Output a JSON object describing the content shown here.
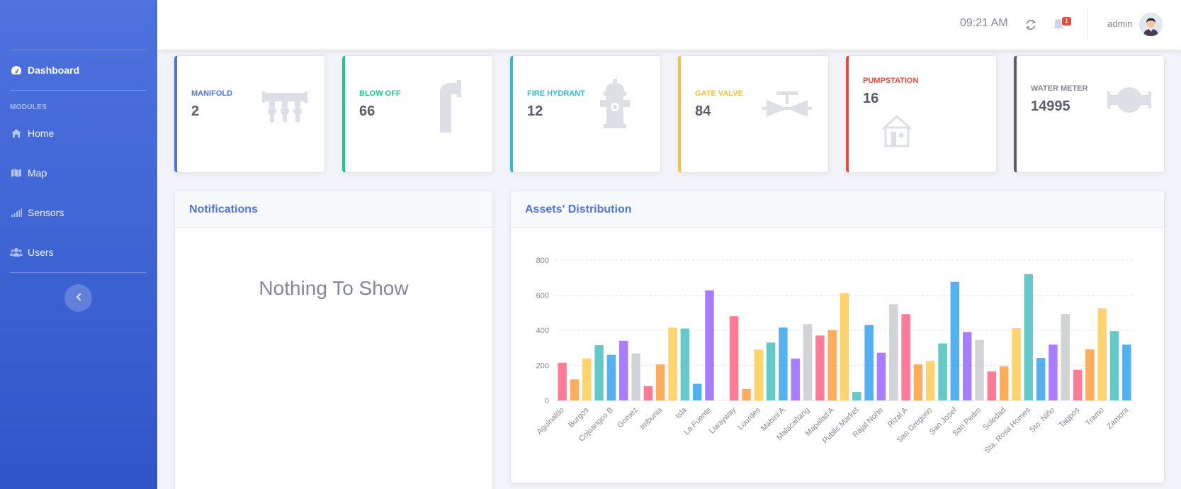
{
  "sidebar": {
    "active_item": "Dashboard",
    "heading": "MODULES",
    "items": [
      {
        "label": "Home",
        "icon": "home-icon"
      },
      {
        "label": "Map",
        "icon": "map-icon"
      },
      {
        "label": "Sensors",
        "icon": "signal-icon"
      },
      {
        "label": "Users",
        "icon": "users-icon"
      }
    ],
    "toggle_icon": "chevron-left-icon"
  },
  "topbar": {
    "time": "09:21 AM",
    "refresh_icon": "refresh-icon",
    "bell_icon": "bell-icon",
    "notification_count": "1",
    "user_name": "admin"
  },
  "cards": [
    {
      "label": "MANIFOLD",
      "value": "2",
      "color": "#4e73df",
      "icon": "manifold-icon"
    },
    {
      "label": "BLOW OFF",
      "value": "66",
      "color": "#1cc88a",
      "icon": "blow-off-pipe-icon"
    },
    {
      "label": "FIRE HYDRANT",
      "value": "12",
      "color": "#36b9cc",
      "icon": "fire-hydrant-icon"
    },
    {
      "label": "GATE VALVE",
      "value": "84",
      "color": "#f6c23e",
      "icon": "gate-valve-icon"
    },
    {
      "label": "PUMPSTATION",
      "value": "16",
      "color": "#e74a3b",
      "icon": "pump-station-icon"
    },
    {
      "label": "WATER METER",
      "value": "14995",
      "color": "#5a5c69",
      "icon": "water-meter-icon"
    }
  ],
  "notifications": {
    "title": "Notifications",
    "empty_text": "Nothing To Show"
  },
  "assets": {
    "title": "Assets' Distribution"
  },
  "chart_data": {
    "type": "bar",
    "title": "",
    "xlabel": "",
    "ylabel": "",
    "ylim": [
      0,
      800
    ],
    "yticks": [
      0,
      200,
      400,
      600,
      800
    ],
    "grid": true,
    "legend": "none",
    "palette": [
      "#ff6384",
      "#ff9f40",
      "#ffcd56",
      "#4bc0c0",
      "#36a2eb",
      "#9966ff",
      "#c9cbcf"
    ],
    "categories": [
      "Aguinaldo",
      "",
      "Burgos",
      "",
      "Cojuangco B",
      "",
      "Gomez",
      "",
      "Imbunia",
      "",
      "Isla",
      "",
      "La Fuente",
      "",
      "Liwayway",
      "",
      "Lourdes",
      "",
      "Mabini A",
      "",
      "Malacañang",
      "",
      "Mapalad A",
      "",
      "Public Market",
      "",
      "Rajal Norte",
      "",
      "Rizal A",
      "",
      "San Gregorio",
      "",
      "San Josef",
      "",
      "San Pedro",
      "",
      "Soledad",
      "",
      "Sta. Rosa Homes",
      "",
      "Sto. Niño",
      "",
      "Tagpos",
      "",
      "Tramo",
      "",
      "Zamora"
    ],
    "values": [
      215,
      120,
      238,
      315,
      260,
      340,
      268,
      82,
      205,
      415,
      410,
      95,
      628,
      0,
      480,
      65,
      290,
      330,
      415,
      238,
      435,
      370,
      400,
      612,
      48,
      430,
      272,
      548,
      492,
      205,
      225,
      325,
      676,
      390,
      345,
      165,
      195,
      412,
      720,
      242,
      318,
      492,
      175,
      292,
      525,
      395,
      318
    ]
  }
}
